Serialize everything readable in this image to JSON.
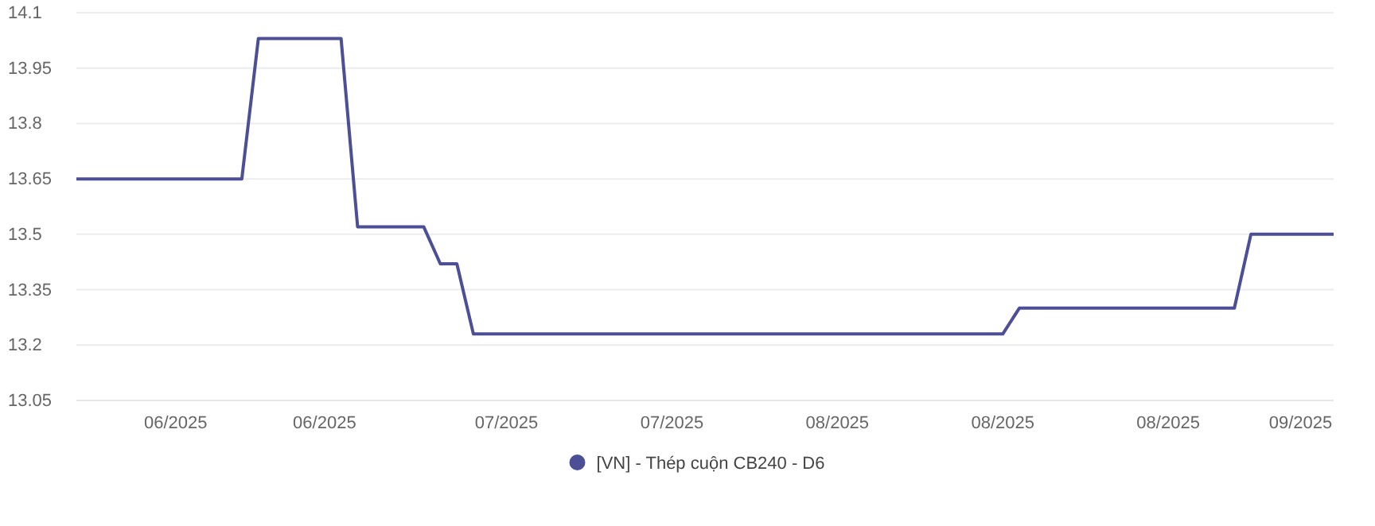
{
  "chart_data": {
    "type": "line",
    "categories": [
      null,
      null,
      null,
      null,
      null,
      null,
      "06/2025",
      null,
      null,
      null,
      null,
      null,
      null,
      null,
      null,
      "06/2025",
      null,
      null,
      null,
      null,
      null,
      null,
      null,
      null,
      null,
      null,
      "07/2025",
      null,
      null,
      null,
      null,
      null,
      null,
      null,
      null,
      null,
      "07/2025",
      null,
      null,
      null,
      null,
      null,
      null,
      null,
      null,
      null,
      "08/2025",
      null,
      null,
      null,
      null,
      null,
      null,
      null,
      null,
      null,
      "08/2025",
      null,
      null,
      null,
      null,
      null,
      null,
      null,
      null,
      null,
      "08/2025",
      null,
      null,
      null,
      null,
      null,
      null,
      null,
      "09/2025",
      null,
      null
    ],
    "series": [
      {
        "name": "[VN] - Thép cuộn CB240 - D6",
        "color": "#4c4f96",
        "values": [
          13.65,
          13.65,
          13.65,
          13.65,
          13.65,
          13.65,
          13.65,
          13.65,
          13.65,
          13.65,
          13.65,
          14.03,
          14.03,
          14.03,
          14.03,
          14.03,
          14.03,
          13.52,
          13.52,
          13.52,
          13.52,
          13.52,
          13.42,
          13.42,
          13.23,
          13.23,
          13.23,
          13.23,
          13.23,
          13.23,
          13.23,
          13.23,
          13.23,
          13.23,
          13.23,
          13.23,
          13.23,
          13.23,
          13.23,
          13.23,
          13.23,
          13.23,
          13.23,
          13.23,
          13.23,
          13.23,
          13.23,
          13.23,
          13.23,
          13.23,
          13.23,
          13.23,
          13.23,
          13.23,
          13.23,
          13.23,
          13.23,
          13.3,
          13.3,
          13.3,
          13.3,
          13.3,
          13.3,
          13.3,
          13.3,
          13.3,
          13.3,
          13.3,
          13.3,
          13.3,
          13.3,
          13.5,
          13.5,
          13.5,
          13.5,
          13.5,
          13.5
        ]
      }
    ],
    "ylim": [
      13.05,
      14.1
    ],
    "yticks": [
      13.05,
      13.2,
      13.35,
      13.5,
      13.65,
      13.8,
      13.95,
      14.1
    ],
    "grid": "y",
    "legend": "bottom"
  }
}
